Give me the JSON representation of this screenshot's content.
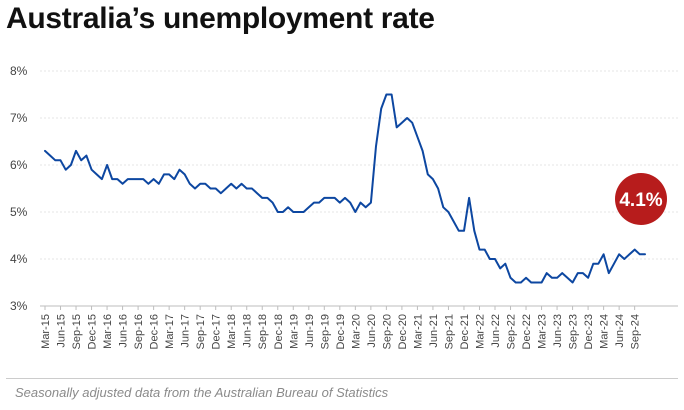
{
  "title": "Australia’s unemployment rate",
  "caption": "Seasonally adjusted data from the Australian Bureau of Statistics",
  "chart_data": {
    "type": "line",
    "title": "Australia’s unemployment rate",
    "ylim": [
      3,
      8
    ],
    "yticks": [
      3,
      4,
      5,
      6,
      7,
      8
    ],
    "ytick_labels": [
      "3%",
      "4%",
      "5%",
      "6%",
      "7%",
      "8%"
    ],
    "grid": true,
    "xtick_labels": [
      "Mar-15",
      "Jun-15",
      "Sep-15",
      "Dec-15",
      "Mar-16",
      "Jun-16",
      "Sep-16",
      "Dec-16",
      "Mar-17",
      "Jun-17",
      "Sep-17",
      "Dec-17",
      "Mar-18",
      "Jun-18",
      "Sep-18",
      "Dec-18",
      "Mar-19",
      "Jun-19",
      "Sep-19",
      "Dec-19",
      "Mar-20",
      "Jun-20",
      "Sep-20",
      "Dec-20",
      "Mar-21",
      "Jun-21",
      "Sep-21",
      "Dec-21",
      "Mar-22",
      "Jun-22",
      "Sep-22",
      "Dec-22",
      "Mar-23",
      "Jun-23",
      "Sep-23",
      "Dec-23",
      "Mar-24",
      "Jun-24",
      "Sep-24"
    ],
    "x_start": "Mar-15",
    "x_end": "Sep-24",
    "line_color": "#0d47a1",
    "values": [
      6.3,
      6.2,
      6.1,
      6.1,
      5.9,
      6.0,
      6.3,
      6.1,
      6.2,
      5.9,
      5.8,
      5.7,
      6.0,
      5.7,
      5.7,
      5.6,
      5.7,
      5.7,
      5.7,
      5.7,
      5.6,
      5.7,
      5.6,
      5.8,
      5.8,
      5.7,
      5.9,
      5.8,
      5.6,
      5.5,
      5.6,
      5.6,
      5.5,
      5.5,
      5.4,
      5.5,
      5.6,
      5.5,
      5.6,
      5.5,
      5.5,
      5.4,
      5.3,
      5.3,
      5.2,
      5.0,
      5.0,
      5.1,
      5.0,
      5.0,
      5.0,
      5.1,
      5.2,
      5.2,
      5.3,
      5.3,
      5.3,
      5.2,
      5.3,
      5.2,
      5.0,
      5.2,
      5.1,
      5.2,
      6.4,
      7.2,
      7.5,
      7.5,
      6.8,
      6.9,
      7.0,
      6.9,
      6.6,
      6.3,
      5.8,
      5.7,
      5.5,
      5.1,
      5.0,
      4.8,
      4.6,
      4.6,
      5.3,
      4.6,
      4.2,
      4.2,
      4.0,
      4.0,
      3.8,
      3.9,
      3.6,
      3.5,
      3.5,
      3.6,
      3.5,
      3.5,
      3.5,
      3.7,
      3.6,
      3.6,
      3.7,
      3.6,
      3.5,
      3.7,
      3.7,
      3.6,
      3.9,
      3.9,
      4.1,
      3.7,
      3.9,
      4.1,
      4.0,
      4.1,
      4.2,
      4.1,
      4.1
    ],
    "latest_label": "4.1%",
    "badge_color": "#b71c1c"
  }
}
